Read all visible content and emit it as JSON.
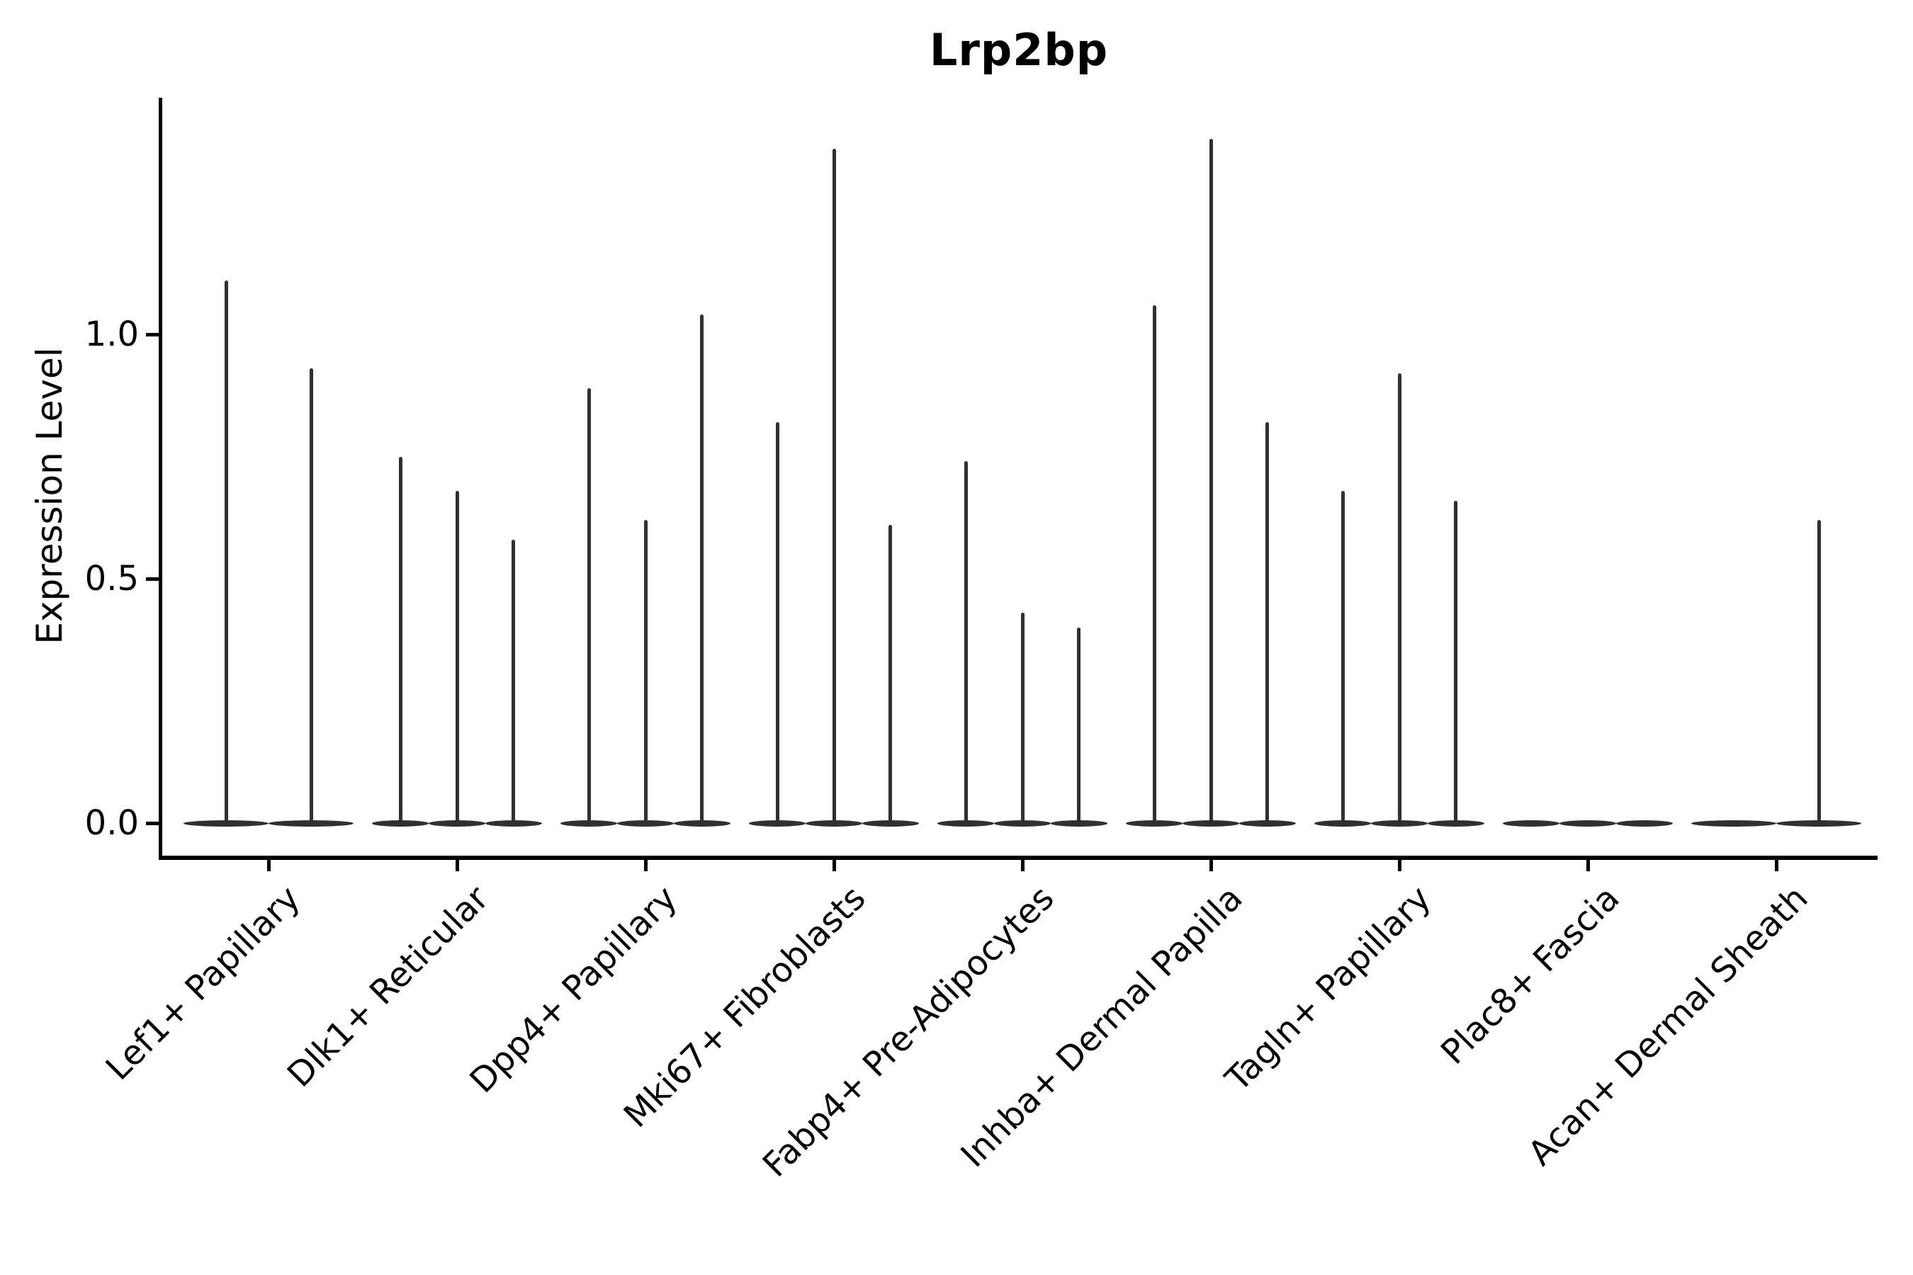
{
  "chart_data": {
    "type": "violin",
    "title": "Lrp2bp",
    "ylabel": "Expression Level",
    "xlabel": "",
    "grid": false,
    "legend": "none",
    "violin_color": "#303030",
    "axis_color": "#000000",
    "ylim": [
      -0.07,
      1.48
    ],
    "yticks": [
      {
        "label": "0.0",
        "value": 0.0
      },
      {
        "label": "0.5",
        "value": 0.5
      },
      {
        "label": "1.0",
        "value": 1.0
      }
    ],
    "categories": [
      "Lef1+ Papillary",
      "Dlk1+ Reticular",
      "Dpp4+ Papillary",
      "Mki67+ Fibroblasts",
      "Fabp4+ Pre-Adipocytes",
      "Inhba+ Dermal Papilla",
      "Tagln+ Papillary",
      "Plac8+ Fascia",
      "Acan+ Dermal Sheath"
    ],
    "groups": [
      {
        "label": "Lef1+ Papillary",
        "slots": 2,
        "needles": [
          {
            "pos": 0.25,
            "value": 1.11
          },
          {
            "pos": 0.75,
            "value": 0.93
          }
        ]
      },
      {
        "label": "Dlk1+ Reticular",
        "slots": 3,
        "needles": [
          {
            "pos": 0.1667,
            "value": 0.75
          },
          {
            "pos": 0.5,
            "value": 0.68
          },
          {
            "pos": 0.8333,
            "value": 0.58
          }
        ]
      },
      {
        "label": "Dpp4+ Papillary",
        "slots": 3,
        "needles": [
          {
            "pos": 0.1667,
            "value": 0.89
          },
          {
            "pos": 0.5,
            "value": 0.62
          },
          {
            "pos": 0.8333,
            "value": 1.04
          }
        ]
      },
      {
        "label": "Mki67+ Fibroblasts",
        "slots": 3,
        "needles": [
          {
            "pos": 0.1667,
            "value": 0.82
          },
          {
            "pos": 0.5,
            "value": 1.38
          },
          {
            "pos": 0.8333,
            "value": 0.61
          }
        ]
      },
      {
        "label": "Fabp4+ Pre-Adipocytes",
        "slots": 3,
        "needles": [
          {
            "pos": 0.1667,
            "value": 0.74
          },
          {
            "pos": 0.5,
            "value": 0.43
          },
          {
            "pos": 0.8333,
            "value": 0.4
          }
        ]
      },
      {
        "label": "Inhba+ Dermal Papilla",
        "slots": 3,
        "needles": [
          {
            "pos": 0.1667,
            "value": 1.06
          },
          {
            "pos": 0.5,
            "value": 1.4
          },
          {
            "pos": 0.8333,
            "value": 0.82
          }
        ]
      },
      {
        "label": "Tagln+ Papillary",
        "slots": 3,
        "needles": [
          {
            "pos": 0.1667,
            "value": 0.68
          },
          {
            "pos": 0.5,
            "value": 0.92
          },
          {
            "pos": 0.8333,
            "value": 0.66
          }
        ]
      },
      {
        "label": "Plac8+ Fascia",
        "slots": 3,
        "needles": []
      },
      {
        "label": "Acan+ Dermal Sheath",
        "slots": 2,
        "needles": [
          {
            "pos": 0.75,
            "value": 0.62
          }
        ]
      }
    ]
  }
}
